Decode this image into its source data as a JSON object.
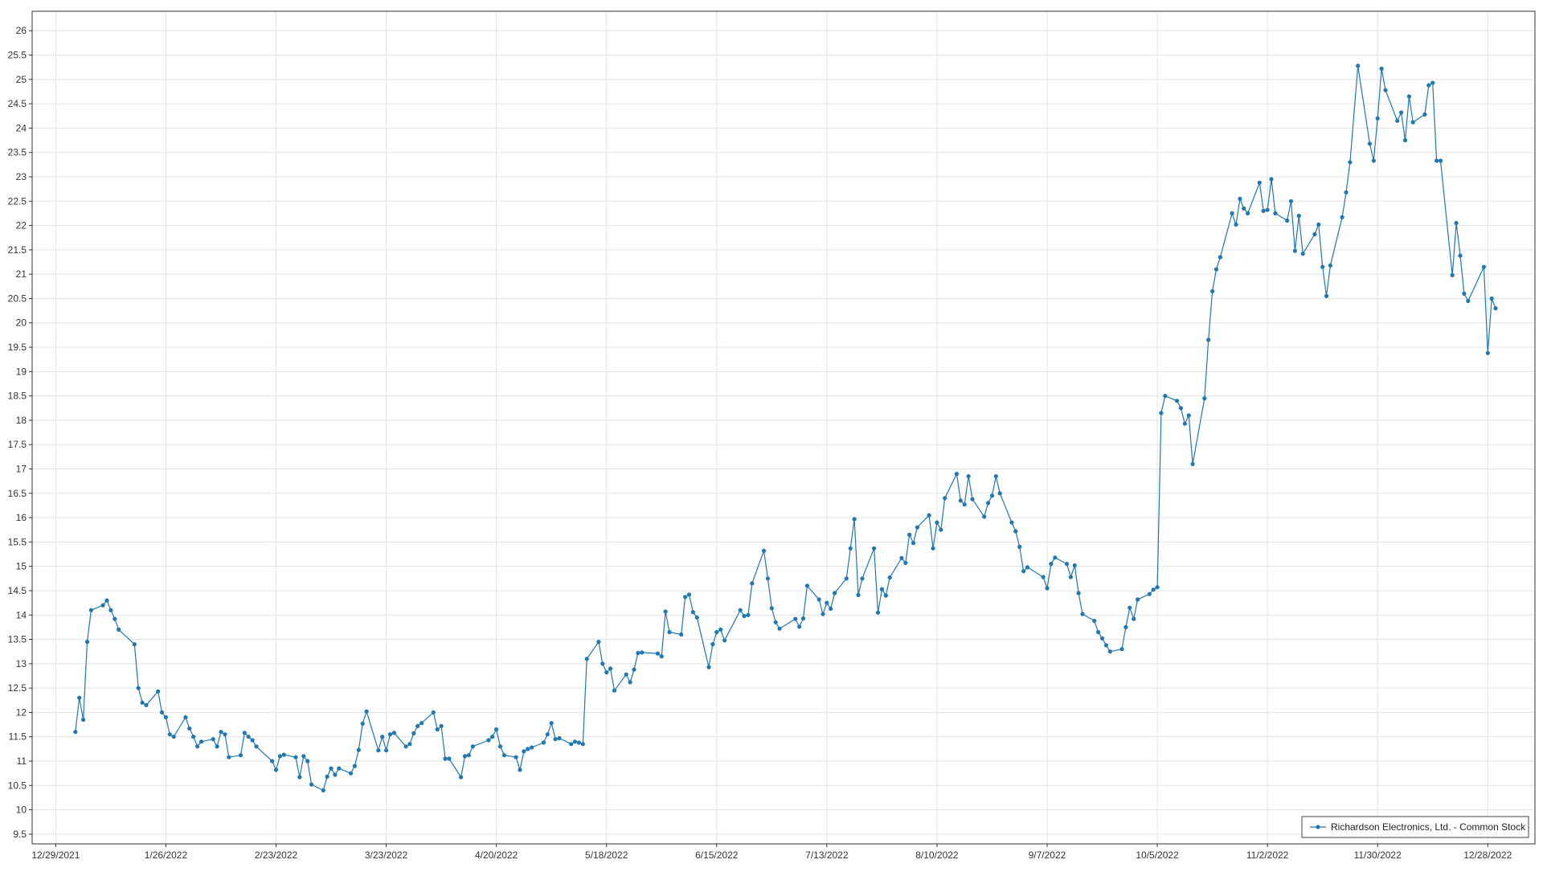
{
  "chart_data": {
    "type": "line",
    "title": "",
    "xlabel": "",
    "ylabel": "",
    "grid": true,
    "legend_position": "bottom-right",
    "ylim": [
      9.3,
      26.4
    ],
    "xlim": [
      "2021-12-23",
      "2023-01-09"
    ],
    "y_ticks": [
      9.5,
      10,
      10.5,
      11,
      11.5,
      12,
      12.5,
      13,
      13.5,
      14,
      14.5,
      15,
      15.5,
      16,
      16.5,
      17,
      17.5,
      18,
      18.5,
      19,
      19.5,
      20,
      20.5,
      21,
      21.5,
      22,
      22.5,
      23,
      23.5,
      24,
      24.5,
      25,
      25.5,
      26
    ],
    "x_ticks": [
      "12/29/2021",
      "1/26/2022",
      "2/23/2022",
      "3/23/2022",
      "4/20/2022",
      "5/18/2022",
      "6/15/2022",
      "7/13/2022",
      "8/10/2022",
      "9/7/2022",
      "10/5/2022",
      "11/2/2022",
      "11/30/2022",
      "12/28/2022"
    ],
    "series": [
      {
        "name": "Richardson Electronics, Ltd. - Common Stock",
        "color": "#1f77b4",
        "points": [
          [
            "2022-01-03",
            11.6
          ],
          [
            "2022-01-04",
            12.3
          ],
          [
            "2022-01-05",
            11.85
          ],
          [
            "2022-01-06",
            13.45
          ],
          [
            "2022-01-07",
            14.1
          ],
          [
            "2022-01-10",
            14.2
          ],
          [
            "2022-01-11",
            14.3
          ],
          [
            "2022-01-12",
            14.1
          ],
          [
            "2022-01-13",
            13.92
          ],
          [
            "2022-01-14",
            13.7
          ],
          [
            "2022-01-18",
            13.4
          ],
          [
            "2022-01-19",
            12.5
          ],
          [
            "2022-01-20",
            12.2
          ],
          [
            "2022-01-21",
            12.15
          ],
          [
            "2022-01-24",
            12.43
          ],
          [
            "2022-01-25",
            12.0
          ],
          [
            "2022-01-26",
            11.9
          ],
          [
            "2022-01-27",
            11.55
          ],
          [
            "2022-01-28",
            11.5
          ],
          [
            "2022-01-31",
            11.9
          ],
          [
            "2022-02-01",
            11.67
          ],
          [
            "2022-02-02",
            11.5
          ],
          [
            "2022-02-03",
            11.3
          ],
          [
            "2022-02-04",
            11.4
          ],
          [
            "2022-02-07",
            11.45
          ],
          [
            "2022-02-08",
            11.3
          ],
          [
            "2022-02-09",
            11.6
          ],
          [
            "2022-02-10",
            11.55
          ],
          [
            "2022-02-11",
            11.08
          ],
          [
            "2022-02-14",
            11.12
          ],
          [
            "2022-02-15",
            11.58
          ],
          [
            "2022-02-16",
            11.5
          ],
          [
            "2022-02-17",
            11.43
          ],
          [
            "2022-02-18",
            11.3
          ],
          [
            "2022-02-22",
            11.0
          ],
          [
            "2022-02-23",
            10.82
          ],
          [
            "2022-02-24",
            11.1
          ],
          [
            "2022-02-25",
            11.13
          ],
          [
            "2022-02-28",
            11.08
          ],
          [
            "2022-03-01",
            10.67
          ],
          [
            "2022-03-02",
            11.1
          ],
          [
            "2022-03-03",
            11.0
          ],
          [
            "2022-03-04",
            10.52
          ],
          [
            "2022-03-07",
            10.4
          ],
          [
            "2022-03-08",
            10.68
          ],
          [
            "2022-03-09",
            10.85
          ],
          [
            "2022-03-10",
            10.72
          ],
          [
            "2022-03-11",
            10.85
          ],
          [
            "2022-03-14",
            10.75
          ],
          [
            "2022-03-15",
            10.9
          ],
          [
            "2022-03-16",
            11.23
          ],
          [
            "2022-03-17",
            11.77
          ],
          [
            "2022-03-18",
            12.02
          ],
          [
            "2022-03-21",
            11.22
          ],
          [
            "2022-03-22",
            11.5
          ],
          [
            "2022-03-23",
            11.22
          ],
          [
            "2022-03-24",
            11.55
          ],
          [
            "2022-03-25",
            11.58
          ],
          [
            "2022-03-28",
            11.3
          ],
          [
            "2022-03-29",
            11.35
          ],
          [
            "2022-03-30",
            11.57
          ],
          [
            "2022-03-31",
            11.72
          ],
          [
            "2022-04-01",
            11.78
          ],
          [
            "2022-04-04",
            12.0
          ],
          [
            "2022-04-05",
            11.65
          ],
          [
            "2022-04-06",
            11.72
          ],
          [
            "2022-04-07",
            11.05
          ],
          [
            "2022-04-08",
            11.05
          ],
          [
            "2022-04-11",
            10.67
          ],
          [
            "2022-04-12",
            11.1
          ],
          [
            "2022-04-13",
            11.12
          ],
          [
            "2022-04-14",
            11.3
          ],
          [
            "2022-04-18",
            11.43
          ],
          [
            "2022-04-19",
            11.5
          ],
          [
            "2022-04-20",
            11.65
          ],
          [
            "2022-04-21",
            11.3
          ],
          [
            "2022-04-22",
            11.12
          ],
          [
            "2022-04-25",
            11.08
          ],
          [
            "2022-04-26",
            10.82
          ],
          [
            "2022-04-27",
            11.2
          ],
          [
            "2022-04-28",
            11.25
          ],
          [
            "2022-04-29",
            11.28
          ],
          [
            "2022-05-02",
            11.38
          ],
          [
            "2022-05-03",
            11.55
          ],
          [
            "2022-05-04",
            11.78
          ],
          [
            "2022-05-05",
            11.45
          ],
          [
            "2022-05-06",
            11.47
          ],
          [
            "2022-05-09",
            11.35
          ],
          [
            "2022-05-10",
            11.4
          ],
          [
            "2022-05-11",
            11.38
          ],
          [
            "2022-05-12",
            11.35
          ],
          [
            "2022-05-13",
            13.1
          ],
          [
            "2022-05-16",
            13.45
          ],
          [
            "2022-05-17",
            13.0
          ],
          [
            "2022-05-18",
            12.82
          ],
          [
            "2022-05-19",
            12.9
          ],
          [
            "2022-05-20",
            12.45
          ],
          [
            "2022-05-23",
            12.78
          ],
          [
            "2022-05-24",
            12.62
          ],
          [
            "2022-05-25",
            12.88
          ],
          [
            "2022-05-26",
            13.22
          ],
          [
            "2022-05-27",
            13.23
          ],
          [
            "2022-05-31",
            13.21
          ],
          [
            "2022-06-01",
            13.15
          ],
          [
            "2022-06-02",
            14.07
          ],
          [
            "2022-06-03",
            13.65
          ],
          [
            "2022-06-06",
            13.6
          ],
          [
            "2022-06-07",
            14.37
          ],
          [
            "2022-06-08",
            14.42
          ],
          [
            "2022-06-09",
            14.06
          ],
          [
            "2022-06-10",
            13.95
          ],
          [
            "2022-06-13",
            12.93
          ],
          [
            "2022-06-14",
            13.4
          ],
          [
            "2022-06-15",
            13.65
          ],
          [
            "2022-06-16",
            13.7
          ],
          [
            "2022-06-17",
            13.48
          ],
          [
            "2022-06-21",
            14.1
          ],
          [
            "2022-06-22",
            13.98
          ],
          [
            "2022-06-23",
            14.0
          ],
          [
            "2022-06-24",
            14.65
          ],
          [
            "2022-06-27",
            15.32
          ],
          [
            "2022-06-28",
            14.75
          ],
          [
            "2022-06-29",
            14.14
          ],
          [
            "2022-06-30",
            13.85
          ],
          [
            "2022-07-01",
            13.72
          ],
          [
            "2022-07-05",
            13.92
          ],
          [
            "2022-07-06",
            13.76
          ],
          [
            "2022-07-07",
            13.93
          ],
          [
            "2022-07-08",
            14.6
          ],
          [
            "2022-07-11",
            14.32
          ],
          [
            "2022-07-12",
            14.02
          ],
          [
            "2022-07-13",
            14.25
          ],
          [
            "2022-07-14",
            14.13
          ],
          [
            "2022-07-15",
            14.45
          ],
          [
            "2022-07-18",
            14.75
          ],
          [
            "2022-07-19",
            15.37
          ],
          [
            "2022-07-20",
            15.97
          ],
          [
            "2022-07-21",
            14.41
          ],
          [
            "2022-07-22",
            14.75
          ],
          [
            "2022-07-25",
            15.37
          ],
          [
            "2022-07-26",
            14.05
          ],
          [
            "2022-07-27",
            14.53
          ],
          [
            "2022-07-28",
            14.4
          ],
          [
            "2022-07-29",
            14.77
          ],
          [
            "2022-08-01",
            15.17
          ],
          [
            "2022-08-02",
            15.07
          ],
          [
            "2022-08-03",
            15.65
          ],
          [
            "2022-08-04",
            15.48
          ],
          [
            "2022-08-05",
            15.8
          ],
          [
            "2022-08-08",
            16.05
          ],
          [
            "2022-08-09",
            15.37
          ],
          [
            "2022-08-10",
            15.9
          ],
          [
            "2022-08-11",
            15.75
          ],
          [
            "2022-08-12",
            16.4
          ],
          [
            "2022-08-15",
            16.9
          ],
          [
            "2022-08-16",
            16.35
          ],
          [
            "2022-08-17",
            16.27
          ],
          [
            "2022-08-18",
            16.85
          ],
          [
            "2022-08-19",
            16.38
          ],
          [
            "2022-08-22",
            16.02
          ],
          [
            "2022-08-23",
            16.3
          ],
          [
            "2022-08-24",
            16.45
          ],
          [
            "2022-08-25",
            16.85
          ],
          [
            "2022-08-26",
            16.5
          ],
          [
            "2022-08-29",
            15.9
          ],
          [
            "2022-08-30",
            15.72
          ],
          [
            "2022-08-31",
            15.4
          ],
          [
            "2022-09-01",
            14.9
          ],
          [
            "2022-09-02",
            14.98
          ],
          [
            "2022-09-06",
            14.78
          ],
          [
            "2022-09-07",
            14.55
          ],
          [
            "2022-09-08",
            15.05
          ],
          [
            "2022-09-09",
            15.18
          ],
          [
            "2022-09-12",
            15.05
          ],
          [
            "2022-09-13",
            14.78
          ],
          [
            "2022-09-14",
            15.02
          ],
          [
            "2022-09-15",
            14.45
          ],
          [
            "2022-09-16",
            14.02
          ],
          [
            "2022-09-19",
            13.88
          ],
          [
            "2022-09-20",
            13.65
          ],
          [
            "2022-09-21",
            13.52
          ],
          [
            "2022-09-22",
            13.38
          ],
          [
            "2022-09-23",
            13.25
          ],
          [
            "2022-09-26",
            13.3
          ],
          [
            "2022-09-27",
            13.75
          ],
          [
            "2022-09-28",
            14.15
          ],
          [
            "2022-09-29",
            13.92
          ],
          [
            "2022-09-30",
            14.32
          ],
          [
            "2022-10-03",
            14.43
          ],
          [
            "2022-10-04",
            14.52
          ],
          [
            "2022-10-05",
            14.57
          ],
          [
            "2022-10-06",
            18.15
          ],
          [
            "2022-10-07",
            18.5
          ],
          [
            "2022-10-10",
            18.4
          ],
          [
            "2022-10-11",
            18.25
          ],
          [
            "2022-10-12",
            17.93
          ],
          [
            "2022-10-13",
            18.1
          ],
          [
            "2022-10-14",
            17.1
          ],
          [
            "2022-10-17",
            18.45
          ],
          [
            "2022-10-18",
            19.65
          ],
          [
            "2022-10-19",
            20.65
          ],
          [
            "2022-10-20",
            21.1
          ],
          [
            "2022-10-21",
            21.35
          ],
          [
            "2022-10-24",
            22.25
          ],
          [
            "2022-10-25",
            22.02
          ],
          [
            "2022-10-26",
            22.55
          ],
          [
            "2022-10-27",
            22.35
          ],
          [
            "2022-10-28",
            22.25
          ],
          [
            "2022-10-31",
            22.88
          ],
          [
            "2022-11-01",
            22.3
          ],
          [
            "2022-11-02",
            22.32
          ],
          [
            "2022-11-03",
            22.95
          ],
          [
            "2022-11-04",
            22.25
          ],
          [
            "2022-11-07",
            22.1
          ],
          [
            "2022-11-08",
            22.5
          ],
          [
            "2022-11-09",
            21.48
          ],
          [
            "2022-11-10",
            22.2
          ],
          [
            "2022-11-11",
            21.42
          ],
          [
            "2022-11-14",
            21.82
          ],
          [
            "2022-11-15",
            22.02
          ],
          [
            "2022-11-16",
            21.15
          ],
          [
            "2022-11-17",
            20.55
          ],
          [
            "2022-11-18",
            21.18
          ],
          [
            "2022-11-21",
            22.17
          ],
          [
            "2022-11-22",
            22.68
          ],
          [
            "2022-11-23",
            23.3
          ],
          [
            "2022-11-25",
            25.28
          ],
          [
            "2022-11-28",
            23.68
          ],
          [
            "2022-11-29",
            23.33
          ],
          [
            "2022-11-30",
            24.2
          ],
          [
            "2022-12-01",
            25.22
          ],
          [
            "2022-12-02",
            24.78
          ],
          [
            "2022-12-05",
            24.15
          ],
          [
            "2022-12-06",
            24.32
          ],
          [
            "2022-12-07",
            23.75
          ],
          [
            "2022-12-08",
            24.65
          ],
          [
            "2022-12-09",
            24.12
          ],
          [
            "2022-12-12",
            24.28
          ],
          [
            "2022-12-13",
            24.88
          ],
          [
            "2022-12-14",
            24.93
          ],
          [
            "2022-12-15",
            23.33
          ],
          [
            "2022-12-16",
            23.33
          ],
          [
            "2022-12-19",
            20.98
          ],
          [
            "2022-12-20",
            22.05
          ],
          [
            "2022-12-21",
            21.38
          ],
          [
            "2022-12-22",
            20.6
          ],
          [
            "2022-12-23",
            20.45
          ],
          [
            "2022-12-27",
            21.15
          ],
          [
            "2022-12-28",
            19.38
          ],
          [
            "2022-12-29",
            20.5
          ],
          [
            "2022-12-30",
            20.3
          ]
        ]
      }
    ]
  }
}
